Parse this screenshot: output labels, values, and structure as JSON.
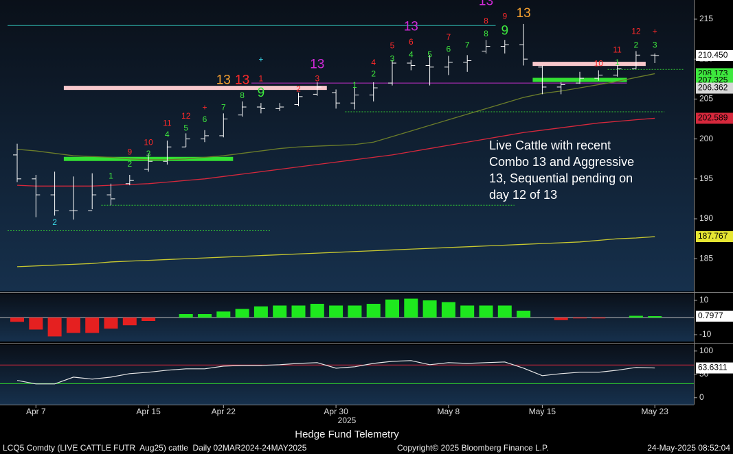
{
  "chart_data": [
    {
      "type": "ohlc",
      "categories": [
        null,
        "Apr 7",
        null,
        null,
        null,
        null,
        null,
        "Apr 15",
        null,
        null,
        null,
        "Apr 22",
        null,
        null,
        null,
        null,
        null,
        "Apr 30",
        null,
        null,
        null,
        null,
        null,
        "May 8",
        null,
        null,
        null,
        null,
        "May 15",
        null,
        null,
        null,
        null,
        null,
        "May 23"
      ],
      "year_label": "2025",
      "open": [
        198,
        195,
        193,
        191,
        191,
        193,
        194.4,
        196.2,
        197.2,
        199,
        200,
        200.4,
        203,
        204,
        203.8,
        204.3,
        205.6,
        205.8,
        204.5,
        205.5,
        207,
        209.5,
        209.2,
        209,
        209.6,
        211,
        211.6,
        211.8,
        209,
        206.5,
        207,
        207.6,
        208,
        208.8,
        210.5
      ],
      "high": [
        199.4,
        195.5,
        195.9,
        195.3,
        195.7,
        194.4,
        195.5,
        198.1,
        199.8,
        200.7,
        201.1,
        203.2,
        204.7,
        204.5,
        204.5,
        205.8,
        207.1,
        206.2,
        206.4,
        207.1,
        209.9,
        209.9,
        210.5,
        210.4,
        210.5,
        212.4,
        212.4,
        214.4,
        209.2,
        207.1,
        208.4,
        208.6,
        209.4,
        211,
        210.7
      ],
      "low": [
        194.6,
        190.2,
        190.4,
        189.9,
        191.2,
        191.7,
        194.2,
        195.9,
        196.8,
        199,
        199.6,
        200.2,
        202.8,
        203.2,
        203.5,
        204.1,
        205.4,
        203.8,
        203.7,
        204.7,
        206.7,
        208.6,
        206.7,
        208,
        208.4,
        210.7,
        210.7,
        209.2,
        205.6,
        205.6,
        206.9,
        207.3,
        207.8,
        208.8,
        209.5
      ],
      "close": [
        195,
        193,
        191,
        191,
        193,
        192.5,
        194.8,
        197.2,
        199,
        200,
        200.4,
        202.5,
        204,
        203.8,
        204,
        205.3,
        206.5,
        204.5,
        205.5,
        206.4,
        209.5,
        209.2,
        209,
        209.6,
        209.8,
        211.6,
        211.8,
        210,
        206.5,
        206.8,
        207.6,
        208,
        208.8,
        210.5,
        210.45
      ],
      "bar_color": "#ffffff",
      "lines": [
        {
          "color": "#d6283c",
          "values": [
            194.2,
            194.1,
            194.1,
            194.1,
            194.1,
            194.2,
            194.3,
            194.4,
            194.6,
            194.8,
            195.0,
            195.3,
            195.6,
            195.9,
            196.2,
            196.5,
            196.8,
            197.1,
            197.4,
            197.7,
            198.0,
            198.4,
            198.8,
            199.2,
            199.6,
            200.0,
            200.4,
            200.8,
            201.1,
            201.4,
            201.7,
            202.0,
            202.2,
            202.4,
            202.589
          ]
        },
        {
          "color": "#6b7d2a",
          "values": [
            198.7,
            198.5,
            198.2,
            197.9,
            197.8,
            197.7,
            197.5,
            197.4,
            197.4,
            197.5,
            197.7,
            197.9,
            198.2,
            198.5,
            198.8,
            199.0,
            199.1,
            199.2,
            199.3,
            199.6,
            200.3,
            201.0,
            201.7,
            202.4,
            203.1,
            203.8,
            204.5,
            205.2,
            205.7,
            206.0,
            206.4,
            206.8,
            207.2,
            207.7,
            208.173
          ]
        },
        {
          "color": "#c8c830",
          "values": [
            184.0,
            184.1,
            184.2,
            184.3,
            184.4,
            184.6,
            184.7,
            184.8,
            184.9,
            185.0,
            185.1,
            185.2,
            185.3,
            185.4,
            185.5,
            185.6,
            185.7,
            185.8,
            185.9,
            186.0,
            186.1,
            186.2,
            186.3,
            186.4,
            186.5,
            186.6,
            186.7,
            186.8,
            186.9,
            187.0,
            187.1,
            187.3,
            187.5,
            187.6,
            187.767
          ]
        }
      ],
      "levels": [
        {
          "value": 214.2,
          "from": 0,
          "to": 25,
          "color": "#2fb8b0",
          "style": "solid"
        },
        {
          "value": 206.4,
          "from": 3,
          "to": 16,
          "color": "#f8c8cc",
          "style": "band"
        },
        {
          "value": 209.4,
          "from": 28,
          "to": 33,
          "color": "#f8c8cc",
          "style": "band"
        },
        {
          "value": 197.5,
          "from": 3,
          "to": 11,
          "color": "#33e033",
          "style": "band"
        },
        {
          "value": 207.4,
          "from": 28,
          "to": 32,
          "color": "#33e033",
          "style": "band"
        },
        {
          "value": 207.0,
          "from": 13,
          "to": 32,
          "color": "#c030c8",
          "style": "solid"
        },
        {
          "value": 191.7,
          "from": 5,
          "to": 26,
          "color": "#33d033",
          "style": "dotted"
        },
        {
          "value": 188.5,
          "from": 0,
          "to": 13,
          "color": "#33d033",
          "style": "dotted"
        },
        {
          "value": 203.4,
          "from": 18,
          "to": 34,
          "color": "#33d033",
          "style": "dotted"
        },
        {
          "value": 208.7,
          "from": 32,
          "to": 35,
          "color": "#33d033",
          "style": "dotted"
        }
      ],
      "annotations": [
        {
          "text": "2",
          "index": 2,
          "y": 189.5,
          "color": "#3ad8e8"
        },
        {
          "text": "1",
          "index": 5,
          "y": 195.3,
          "color": "#3ee83e"
        },
        {
          "text": "2",
          "index": 6,
          "y": 196.8,
          "color": "#3ee83e"
        },
        {
          "text": "3",
          "index": 7,
          "y": 198.1,
          "color": "#3ee83e"
        },
        {
          "text": "4",
          "index": 8,
          "y": 200.5,
          "color": "#3ee83e"
        },
        {
          "text": "5",
          "index": 9,
          "y": 201.3,
          "color": "#3ee83e"
        },
        {
          "text": "6",
          "index": 10,
          "y": 202.4,
          "color": "#3ee83e"
        },
        {
          "text": "7",
          "index": 11,
          "y": 203.9,
          "color": "#3ee83e"
        },
        {
          "text": "8",
          "index": 12,
          "y": 205.4,
          "color": "#3ee83e"
        },
        {
          "text": "9",
          "index": 13,
          "y": 205.7,
          "color": "#3ee83e",
          "big": true
        },
        {
          "text": "9",
          "index": 6,
          "y": 198.3,
          "color": "#ff2a2a"
        },
        {
          "text": "10",
          "index": 7,
          "y": 199.5,
          "color": "#ff2a2a"
        },
        {
          "text": "11",
          "index": 8,
          "y": 201.9,
          "color": "#ff2a2a"
        },
        {
          "text": "12",
          "index": 9,
          "y": 202.8,
          "color": "#ff2a2a"
        },
        {
          "text": "+",
          "index": 10,
          "y": 203.9,
          "color": "#ff2a2a"
        },
        {
          "text": "13",
          "index": 11,
          "y": 207.3,
          "color": "#f5a030",
          "big": true
        },
        {
          "text": "13",
          "index": 12,
          "y": 207.3,
          "color": "#ff2a2a",
          "big": true
        },
        {
          "text": "1",
          "index": 13,
          "y": 207.5,
          "color": "#ff2a2a"
        },
        {
          "text": "+",
          "index": 13,
          "y": 209.9,
          "color": "#3ad8e8"
        },
        {
          "text": "2",
          "index": 15,
          "y": 206.2,
          "color": "#ff2a2a"
        },
        {
          "text": "3",
          "index": 16,
          "y": 207.5,
          "color": "#ff2a2a"
        },
        {
          "text": "13",
          "index": 16,
          "y": 209.3,
          "color": "#d02ad8",
          "big": true
        },
        {
          "text": "1",
          "index": 18,
          "y": 206.7,
          "color": "#3ee83e"
        },
        {
          "text": "2",
          "index": 19,
          "y": 208.1,
          "color": "#3ee83e"
        },
        {
          "text": "4",
          "index": 19,
          "y": 209.5,
          "color": "#ff2a2a"
        },
        {
          "text": "3",
          "index": 20,
          "y": 210.0,
          "color": "#3ee83e"
        },
        {
          "text": "5",
          "index": 20,
          "y": 211.6,
          "color": "#ff2a2a"
        },
        {
          "text": "4",
          "index": 21,
          "y": 210.5,
          "color": "#3ee83e"
        },
        {
          "text": "6",
          "index": 21,
          "y": 212.1,
          "color": "#ff2a2a"
        },
        {
          "text": "13",
          "index": 21,
          "y": 214.0,
          "color": "#d02ad8",
          "big": true
        },
        {
          "text": "5",
          "index": 22,
          "y": 210.5,
          "color": "#3ee83e"
        },
        {
          "text": "6",
          "index": 23,
          "y": 211.2,
          "color": "#3ee83e"
        },
        {
          "text": "7",
          "index": 23,
          "y": 212.7,
          "color": "#ff2a2a"
        },
        {
          "text": "7",
          "index": 24,
          "y": 211.7,
          "color": "#3ee83e"
        },
        {
          "text": "8",
          "index": 25,
          "y": 213.1,
          "color": "#3ee83e"
        },
        {
          "text": "8",
          "index": 25,
          "y": 214.7,
          "color": "#ff2a2a"
        },
        {
          "text": "13",
          "index": 25,
          "y": 217.2,
          "color": "#d02ad8",
          "big": true
        },
        {
          "text": "9",
          "index": 26,
          "y": 213.5,
          "color": "#3ee83e",
          "big": true
        },
        {
          "text": "9",
          "index": 26,
          "y": 215.3,
          "color": "#ff2a2a"
        },
        {
          "text": "13",
          "index": 27,
          "y": 215.7,
          "color": "#f5a030",
          "big": true
        },
        {
          "text": "10",
          "index": 31,
          "y": 209.4,
          "color": "#ff2a2a"
        },
        {
          "text": "1",
          "index": 32,
          "y": 209.5,
          "color": "#3ee83e"
        },
        {
          "text": "11",
          "index": 32,
          "y": 211.1,
          "color": "#ff2a2a"
        },
        {
          "text": "2",
          "index": 33,
          "y": 211.7,
          "color": "#3ee83e"
        },
        {
          "text": "12",
          "index": 33,
          "y": 213.4,
          "color": "#ff2a2a"
        },
        {
          "text": "3",
          "index": 34,
          "y": 211.7,
          "color": "#3ee83e"
        },
        {
          "text": "+",
          "index": 34,
          "y": 213.4,
          "color": "#ff2a2a"
        }
      ],
      "callout": [
        "Live Cattle with recent",
        "Combo 13 and Aggressive",
        "13, Sequential pending on",
        "day 12 of 13"
      ],
      "ylim": [
        180.9,
        217.4
      ],
      "yticks": [
        185,
        190,
        195,
        200,
        205,
        210,
        215
      ],
      "price_labels": [
        {
          "value": 210.45,
          "label": "210.450",
          "color": "#ffffff"
        },
        {
          "value": 208.173,
          "label": "208.173",
          "color": "#3ee83e"
        },
        {
          "value": 207.325,
          "label": "207.325",
          "color": "#3ee83e"
        },
        {
          "value": 206.362,
          "label": "206.362",
          "color": "#d8d8d8"
        },
        {
          "value": 202.589,
          "label": "202.589",
          "color": "#d6283c"
        },
        {
          "value": 187.767,
          "label": "187.767",
          "color": "#e6e632"
        }
      ]
    },
    {
      "type": "bar",
      "values": [
        -2.5,
        -7,
        -11,
        -9,
        -9,
        -6.5,
        -4.5,
        -2,
        0,
        2,
        2,
        3.5,
        5,
        6.5,
        7,
        7,
        8,
        7,
        7,
        8,
        10.5,
        11,
        10,
        9,
        7,
        7,
        7,
        4,
        0,
        -1.5,
        -0.5,
        -0.5,
        0,
        1,
        0.8
      ],
      "colors": {
        "positive": "#1ee81e",
        "negative": "#e52020"
      },
      "ylim": [
        -14,
        14
      ],
      "yticks": [
        -10,
        10
      ],
      "last_value": 0.7977
    },
    {
      "type": "line",
      "values": [
        37,
        29.4,
        29.4,
        44,
        39.7,
        44,
        51.5,
        54.4,
        58.8,
        61.8,
        61.8,
        67.6,
        69.1,
        69.1,
        70.6,
        73.5,
        75,
        63.2,
        66.2,
        73.5,
        77.9,
        79.4,
        70.6,
        75,
        73.5,
        75,
        76.5,
        63.2,
        47.1,
        51.5,
        54.4,
        54.4,
        58.8,
        64.7,
        63.6311
      ],
      "color": "#e8e8e8",
      "bands": [
        {
          "value": 70,
          "color": "#d6283c"
        },
        {
          "value": 30,
          "color": "#2fd02f"
        }
      ],
      "ylim": [
        -15,
        113
      ],
      "yticks": [
        0,
        50,
        100
      ],
      "last_value": 63.6311
    }
  ],
  "footer": {
    "watermark": "Hedge Fund Telemetry",
    "security": "LCQ5 Comdty (LIVE CATTLE FUTR  Aug25) cattle  Daily 02MAR2024-24MAY2025",
    "copyright": "Copyright© 2025 Bloomberg Finance L.P.",
    "timestamp": "24-May-2025 08:52:04"
  }
}
